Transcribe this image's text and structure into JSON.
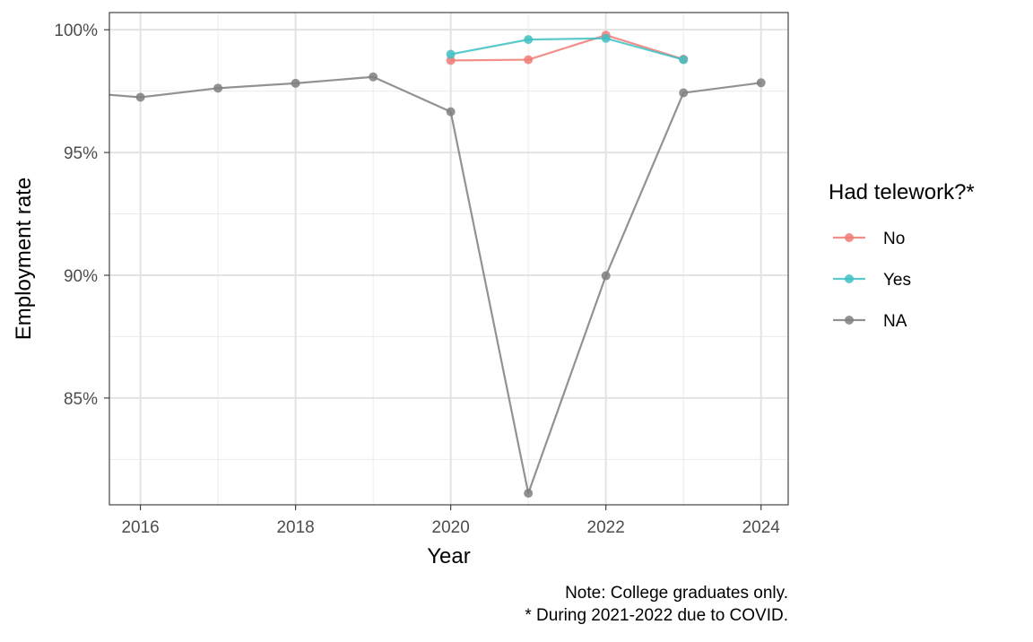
{
  "chart_data": {
    "type": "line",
    "title": "",
    "xlabel": "Year",
    "ylabel": "Employment rate",
    "xlim": [
      2015.6,
      2024.35
    ],
    "ylim": [
      80.65,
      100.7
    ],
    "x_ticks": [
      2016,
      2018,
      2020,
      2022,
      2024
    ],
    "x_tick_labels": [
      "2016",
      "2018",
      "2020",
      "2022",
      "2024"
    ],
    "y_ticks": [
      85,
      90,
      95,
      100
    ],
    "y_tick_labels": [
      "85%",
      "90%",
      "95%",
      "100%"
    ],
    "grid": true,
    "legend": {
      "title": "Had telework?*",
      "position": "right"
    },
    "series": [
      {
        "name": "No",
        "color": "#f07b76",
        "x": [
          2020,
          2021,
          2022,
          2023
        ],
        "y": [
          98.75,
          98.78,
          99.78,
          98.8
        ]
      },
      {
        "name": "Yes",
        "color": "#3fbfc3",
        "x": [
          2020,
          2021,
          2022,
          2023
        ],
        "y": [
          99.0,
          99.6,
          99.65,
          98.78
        ]
      },
      {
        "name": "NA",
        "color": "#7f7f7f",
        "x": [
          2015,
          2016,
          2017,
          2018,
          2019,
          2020,
          2021,
          2022,
          2023,
          2024
        ],
        "y": [
          97.5,
          97.25,
          97.62,
          97.82,
          98.08,
          96.66,
          81.12,
          89.98,
          97.43,
          97.84
        ],
        "marker_x": [
          2016,
          2017,
          2018,
          2019,
          2020,
          2021,
          2022,
          2023,
          2024
        ]
      }
    ],
    "note_lines": [
      "Note: College graduates only.",
      "* During 2021-2022 due to COVID."
    ]
  }
}
